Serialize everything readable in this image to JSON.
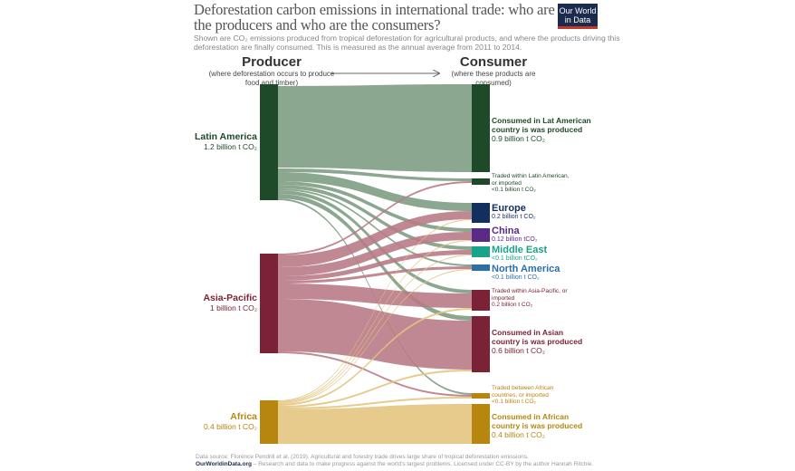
{
  "title": "Deforestation carbon emissions in international trade: who are the producers and who are the consumers?",
  "subtitle": "Shown are CO₂ emissions produced from tropical deforestation for agricultural products, and where the products driving this deforestation are finally consumed.  This is measured as the annual average from 2011 to 2014.",
  "logo": "Our World in Data",
  "producer": {
    "heading": "Producer",
    "sub": "(where deforestation occurs to produce food and timber)"
  },
  "consumer": {
    "heading": "Consumer",
    "sub": "(where these products are consumed)"
  },
  "producers": [
    {
      "id": "latam",
      "name": "Latin America",
      "value": "1.2 billion t CO₂",
      "color": "#1f4a2a",
      "flow_color": "#7f9d83"
    },
    {
      "id": "asia",
      "name": "Asia-Pacific",
      "value": "1 billion t CO₂",
      "color": "#7b2236",
      "flow_color": "#b97b86"
    },
    {
      "id": "africa",
      "name": "Africa",
      "value": "0.4 billion t CO₂",
      "color": "#b7860e",
      "flow_color": "#e3c57f"
    }
  ],
  "consumers": [
    {
      "id": "latam_c",
      "name": "Consumed in Lat American country is was produced",
      "value": "0.9 billion t CO₂",
      "color": "#1f4a2a"
    },
    {
      "id": "latam_t",
      "name": "Traded within Latin American, or imported",
      "value": "<0.1 billion t CO₂",
      "color": "#1f4a2a"
    },
    {
      "id": "europe",
      "name": "Europe",
      "value": "0.2 billion t CO₂",
      "color": "#122f5e"
    },
    {
      "id": "china",
      "name": "China",
      "value": "0.12 billion tCO₂",
      "color": "#5a2a86"
    },
    {
      "id": "me",
      "name": "Middle East",
      "value": "<0.1 billion tCO₂",
      "color": "#18a48a"
    },
    {
      "id": "na",
      "name": "North America",
      "value": "<0.1 billion t CO₂",
      "color": "#2a6fa8"
    },
    {
      "id": "asia_t",
      "name": "Traded within Asia-Pacific, or imported",
      "value": "0.2 billion t CO₂",
      "color": "#7b2236"
    },
    {
      "id": "asia_c",
      "name": "Consumed in Asian country is was produced",
      "value": "0.6 billion t CO₂",
      "color": "#7b2236"
    },
    {
      "id": "africa_t",
      "name": "Traded between African countries, or imported",
      "value": "<0.1 billion t CO₂",
      "color": "#b7860e"
    },
    {
      "id": "africa_c",
      "name": "Consumed in African country is was produced",
      "value": "0.4 billion t CO₂",
      "color": "#b7860e"
    }
  ],
  "links": [
    [
      "latam",
      "latam_c"
    ],
    [
      "latam",
      "latam_t"
    ],
    [
      "latam",
      "europe"
    ],
    [
      "latam",
      "china"
    ],
    [
      "latam",
      "me"
    ],
    [
      "latam",
      "na"
    ],
    [
      "latam",
      "asia_t"
    ],
    [
      "latam",
      "asia_c"
    ],
    [
      "latam",
      "africa_t"
    ],
    [
      "asia",
      "latam_t"
    ],
    [
      "asia",
      "europe"
    ],
    [
      "asia",
      "china"
    ],
    [
      "asia",
      "me"
    ],
    [
      "asia",
      "na"
    ],
    [
      "asia",
      "asia_t"
    ],
    [
      "asia",
      "asia_c"
    ],
    [
      "asia",
      "africa_t"
    ],
    [
      "africa",
      "europe"
    ],
    [
      "africa",
      "china"
    ],
    [
      "africa",
      "me"
    ],
    [
      "africa",
      "na"
    ],
    [
      "africa",
      "asia_t"
    ],
    [
      "africa",
      "asia_c"
    ],
    [
      "africa",
      "africa_t"
    ],
    [
      "africa",
      "africa_c"
    ]
  ],
  "footer": {
    "source": "Data source: Florence Pendrill et al. (2019). Agricultural and forestry trade drives large share of tropical deforestation emissions.",
    "site": "OurWorldinData.org",
    "tagline": " – Research and data to make progress against the world's largest problems.",
    "license": "Licensed under CC-BY by the author Hannah Ritchie."
  }
}
